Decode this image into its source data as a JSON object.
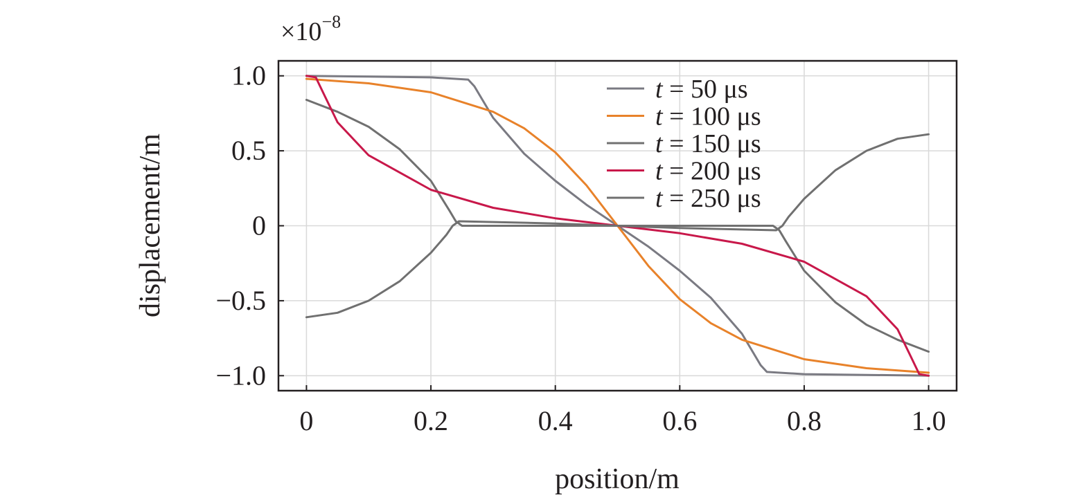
{
  "chart_data": {
    "type": "line",
    "xlabel": "position/m",
    "ylabel": "displacement/m",
    "y_multiplier_label": "×10",
    "y_multiplier_exponent": "−8",
    "xlim": [
      -0.045,
      1.045
    ],
    "ylim": [
      -1.1,
      1.1
    ],
    "grid": true,
    "legend_position": "top-right",
    "x_ticks": [
      {
        "value": 0,
        "label": "0"
      },
      {
        "value": 0.2,
        "label": "0.2"
      },
      {
        "value": 0.4,
        "label": "0.4"
      },
      {
        "value": 0.6,
        "label": "0.6"
      },
      {
        "value": 0.8,
        "label": "0.8"
      },
      {
        "value": 1.0,
        "label": "1.0"
      }
    ],
    "y_ticks": [
      {
        "value": 1.0,
        "label": "1.0"
      },
      {
        "value": 0.5,
        "label": "0.5"
      },
      {
        "value": 0,
        "label": "0"
      },
      {
        "value": -0.5,
        "label": "−0.5"
      },
      {
        "value": -1.0,
        "label": "−1.0"
      }
    ],
    "series": [
      {
        "name": "t = 50 μs",
        "legend_italic": "t",
        "legend_rest": " = 50 μs",
        "color": "#7a7a82",
        "x": [
          0,
          0.1,
          0.2,
          0.26,
          0.27,
          0.3,
          0.35,
          0.4,
          0.45,
          0.5,
          0.55,
          0.6,
          0.65,
          0.7,
          0.73,
          0.74,
          0.8,
          0.9,
          1.0
        ],
        "y": [
          1.0,
          0.995,
          0.99,
          0.975,
          0.93,
          0.72,
          0.48,
          0.3,
          0.14,
          0.0,
          -0.14,
          -0.3,
          -0.48,
          -0.72,
          -0.93,
          -0.975,
          -0.99,
          -0.995,
          -1.0
        ]
      },
      {
        "name": "t = 100 μs",
        "legend_italic": "t",
        "legend_rest": " = 100 μs",
        "color": "#e8822a",
        "x": [
          0,
          0.1,
          0.2,
          0.3,
          0.35,
          0.4,
          0.45,
          0.5,
          0.55,
          0.6,
          0.65,
          0.7,
          0.8,
          0.9,
          1.0
        ],
        "y": [
          0.98,
          0.95,
          0.89,
          0.76,
          0.65,
          0.49,
          0.27,
          0.0,
          -0.27,
          -0.49,
          -0.65,
          -0.76,
          -0.89,
          -0.95,
          -0.98
        ]
      },
      {
        "name": "t = 150 μs",
        "legend_italic": "t",
        "legend_rest": " = 150 μs",
        "color": "#707070",
        "x": [
          0,
          0.05,
          0.1,
          0.15,
          0.2,
          0.23,
          0.24,
          0.25,
          0.3,
          0.4,
          0.5,
          0.6,
          0.7,
          0.75,
          0.76,
          0.77,
          0.8,
          0.85,
          0.9,
          0.95,
          1.0
        ],
        "y": [
          0.84,
          0.76,
          0.66,
          0.51,
          0.3,
          0.1,
          0.03,
          0.0,
          0.0,
          0.0,
          0.0,
          0.0,
          0.0,
          0.0,
          -0.03,
          -0.1,
          -0.3,
          -0.51,
          -0.66,
          -0.76,
          -0.84
        ]
      },
      {
        "name": "t = 200 μs",
        "legend_italic": "t",
        "legend_rest": " = 200 μs",
        "color": "#c8184a",
        "x": [
          0,
          0.015,
          0.03,
          0.05,
          0.1,
          0.2,
          0.3,
          0.4,
          0.5,
          0.6,
          0.7,
          0.8,
          0.9,
          0.95,
          0.97,
          0.985,
          1.0
        ],
        "y": [
          1.0,
          0.99,
          0.86,
          0.69,
          0.47,
          0.24,
          0.12,
          0.05,
          0.0,
          -0.05,
          -0.12,
          -0.24,
          -0.47,
          -0.69,
          -0.86,
          -0.99,
          -1.0
        ]
      },
      {
        "name": "t = 250 μs",
        "legend_italic": "t",
        "legend_rest": " = 250 μs",
        "color": "#707070",
        "x": [
          0,
          0.05,
          0.1,
          0.15,
          0.2,
          0.225,
          0.235,
          0.245,
          0.3,
          0.4,
          0.5,
          0.6,
          0.7,
          0.755,
          0.765,
          0.775,
          0.8,
          0.85,
          0.9,
          0.95,
          1.0
        ],
        "y": [
          -0.61,
          -0.58,
          -0.5,
          -0.37,
          -0.18,
          -0.06,
          0.0,
          0.03,
          0.025,
          0.015,
          0.0,
          -0.015,
          -0.025,
          -0.03,
          0.0,
          0.06,
          0.18,
          0.37,
          0.5,
          0.58,
          0.61
        ]
      }
    ]
  }
}
